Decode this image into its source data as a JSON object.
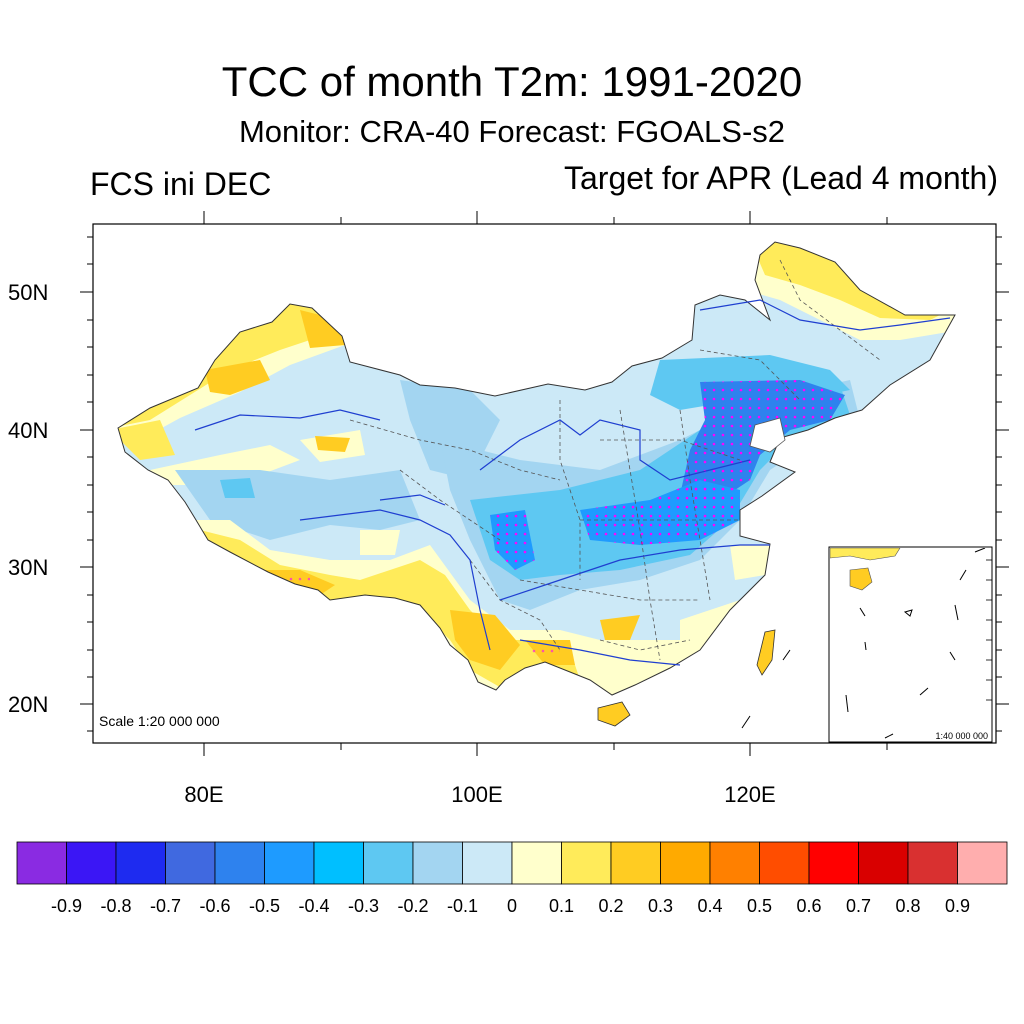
{
  "title": "TCC of month T2m: 1991-2020",
  "subtitle": "Monitor: CRA-40   Forecast: FGOALS-s2",
  "left_label": "FCS ini DEC",
  "right_label": "Target for APR (Lead 4 month)",
  "scale_main": "Scale 1:20 000 000",
  "scale_inset": "1:40 000 000",
  "lat_labels": [
    "50N",
    "40N",
    "30N",
    "20N"
  ],
  "lon_labels": [
    "80E",
    "100E",
    "120E"
  ],
  "colorbar": {
    "colors": [
      "#8a2be2",
      "#3b16f5",
      "#1e2bf0",
      "#4069e0",
      "#2e82ee",
      "#1e9bff",
      "#00bfff",
      "#5ec8f2",
      "#a3d5f1",
      "#cce9f7",
      "#ffffcc",
      "#ffeb5a",
      "#ffcc22",
      "#ffaa00",
      "#ff8000",
      "#ff4d00",
      "#ff0000",
      "#d90000",
      "#d93030",
      "#ffaeae"
    ],
    "labels": [
      "-0.9",
      "-0.8",
      "-0.7",
      "-0.6",
      "-0.5",
      "-0.4",
      "-0.3",
      "-0.2",
      "-0.1",
      "0",
      "0.1",
      "0.2",
      "0.3",
      "0.4",
      "0.5",
      "0.6",
      "0.7",
      "0.8",
      "0.9"
    ]
  }
}
